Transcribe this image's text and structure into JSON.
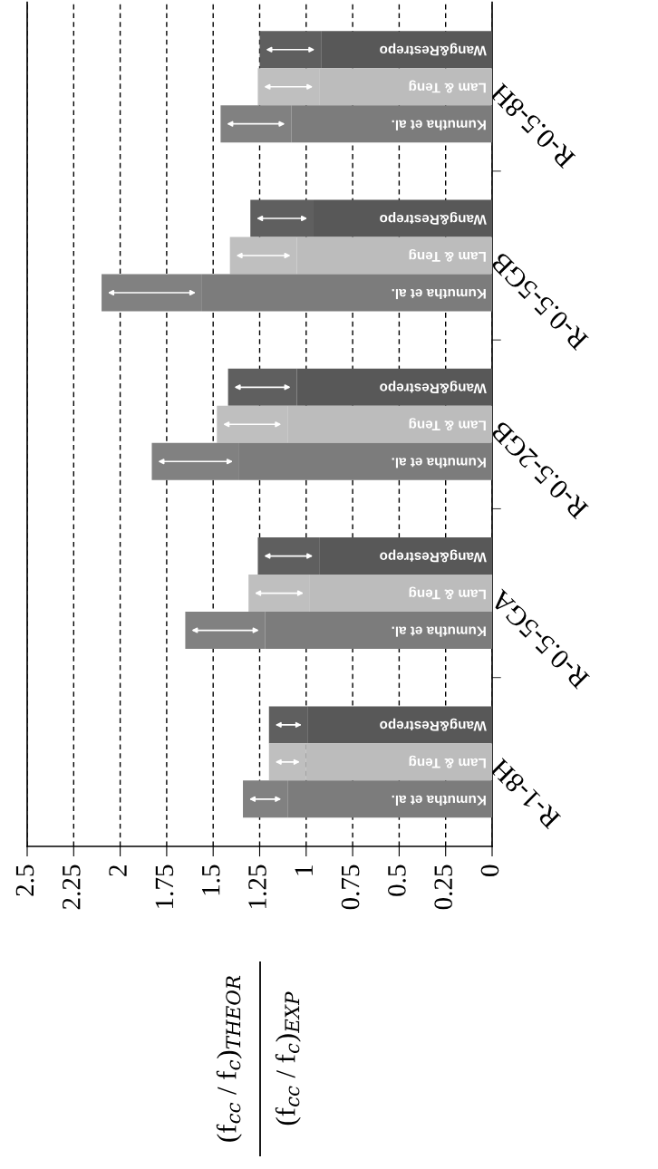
{
  "chart_data": {
    "type": "bar",
    "orientation": "horizontal",
    "categories": [
      "R-0.5-8H",
      "R-0.5-5GB",
      "R-0.5-2GB",
      "R-0.5-5GA",
      "R-1-8H"
    ],
    "ylabel": "(f$_{cc}$ / f$_{c}$)$_{THEOR}$\n(f$_{cc}$ / f$_{c}$)$_{EXP}$",
    "series": [
      {
        "name": "Wang&Restrepo",
        "color": "#585858",
        "values": [
          0.92,
          0.96,
          1.05,
          0.93,
          0.99
        ],
        "errors": [
          [
            0.92,
            1.25
          ],
          [
            0.96,
            1.3
          ],
          [
            1.05,
            1.42
          ],
          [
            0.93,
            1.26
          ],
          [
            0.99,
            1.2
          ]
        ]
      },
      {
        "name": "Lam & Teng",
        "color": "#bcbcbc",
        "values": [
          0.93,
          1.05,
          1.1,
          0.98,
          1.0
        ],
        "errors": [
          [
            0.93,
            1.26
          ],
          [
            1.05,
            1.41
          ],
          [
            1.1,
            1.48
          ],
          [
            0.98,
            1.31
          ],
          [
            1.0,
            1.2
          ]
        ]
      },
      {
        "name": "Kumutha et al.",
        "color": "#7c7c7c",
        "values": [
          1.08,
          1.56,
          1.36,
          1.22,
          1.1
        ],
        "errors": [
          [
            1.08,
            1.46
          ],
          [
            1.56,
            2.1
          ],
          [
            1.36,
            1.83
          ],
          [
            1.22,
            1.65
          ],
          [
            1.1,
            1.34
          ]
        ]
      }
    ],
    "xlim": [
      2.5,
      0
    ],
    "xticks": [
      0,
      0.25,
      0.5,
      0.75,
      1,
      1.25,
      1.5,
      1.75,
      2,
      2.25,
      2.5
    ],
    "grid": "x"
  }
}
